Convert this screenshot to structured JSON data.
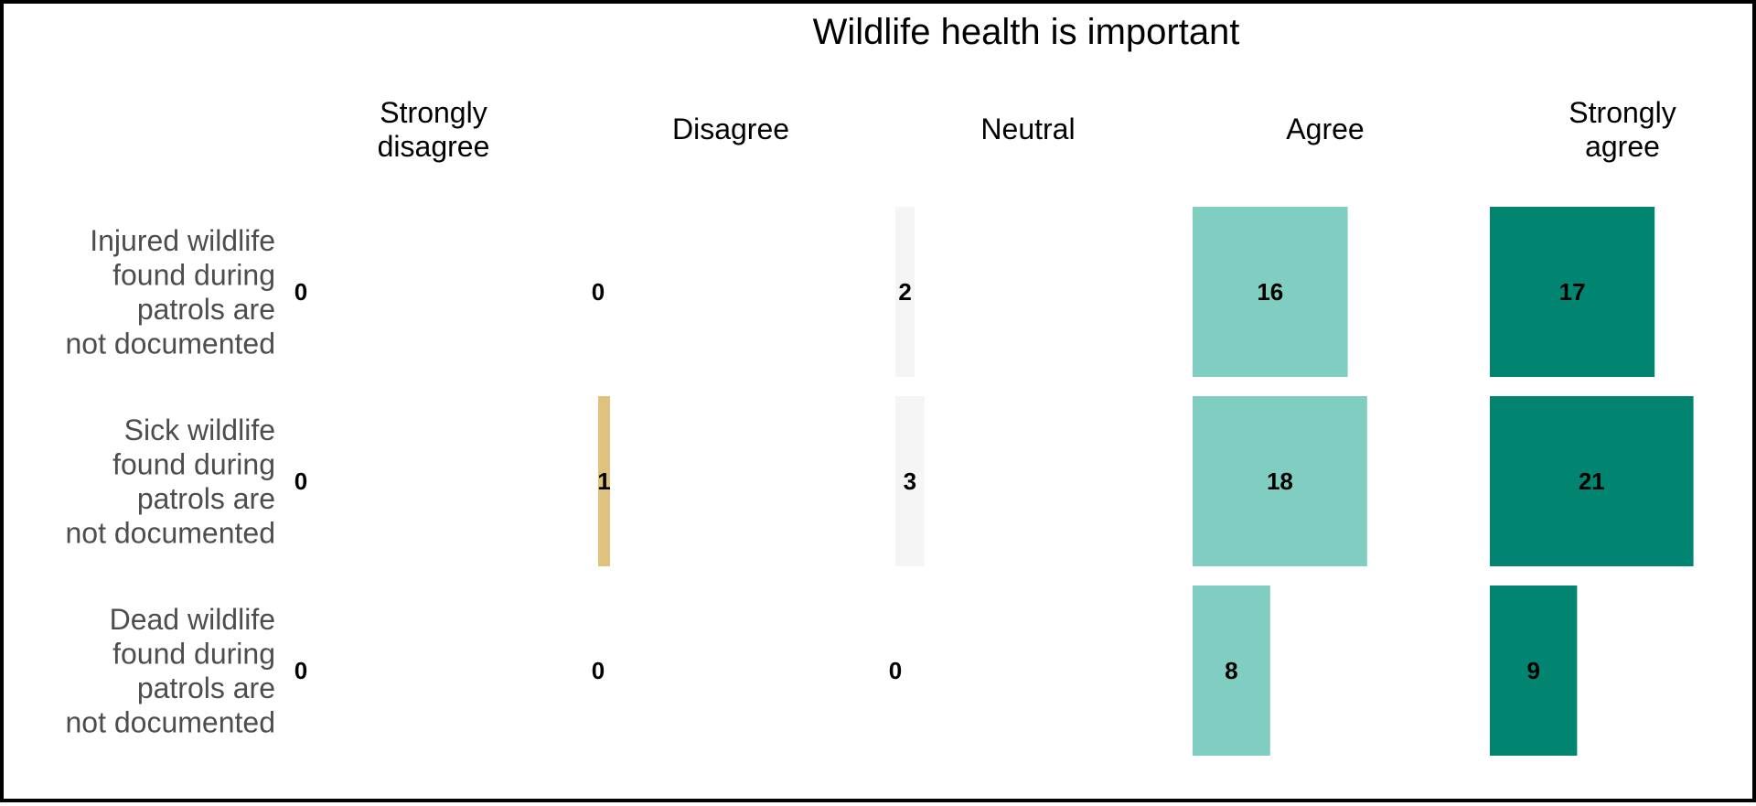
{
  "chart_data": {
    "type": "bar",
    "title": "Wildlife health is important",
    "columns": [
      "Strongly disagree",
      "Disagree",
      "Neutral",
      "Agree",
      "Strongly agree"
    ],
    "column_headers": [
      [
        "Strongly",
        "disagree"
      ],
      [
        "Disagree"
      ],
      [
        "Neutral"
      ],
      [
        "Agree"
      ],
      [
        "Strongly",
        "agree"
      ]
    ],
    "rows": [
      {
        "label": "Injured wildlife found during patrols are not documented",
        "label_lines": [
          "Injured wildlife",
          "found during",
          "patrols are",
          "not documented"
        ],
        "values": [
          0,
          0,
          2,
          16,
          17
        ]
      },
      {
        "label": "Sick wildlife found during patrols are not documented",
        "label_lines": [
          "Sick wildlife",
          "found during",
          "patrols are",
          "not documented"
        ],
        "values": [
          0,
          1,
          3,
          18,
          21
        ]
      },
      {
        "label": "Dead wildlife found during patrols are not documented",
        "label_lines": [
          "Dead wildlife",
          "found during",
          "patrols are",
          "not documented"
        ],
        "values": [
          0,
          0,
          0,
          8,
          9
        ]
      }
    ],
    "colors": [
      "#a6611a",
      "#dfc27d",
      "#f5f5f5",
      "#80cdc1",
      "#018571"
    ],
    "legend": "none",
    "grid": false
  }
}
